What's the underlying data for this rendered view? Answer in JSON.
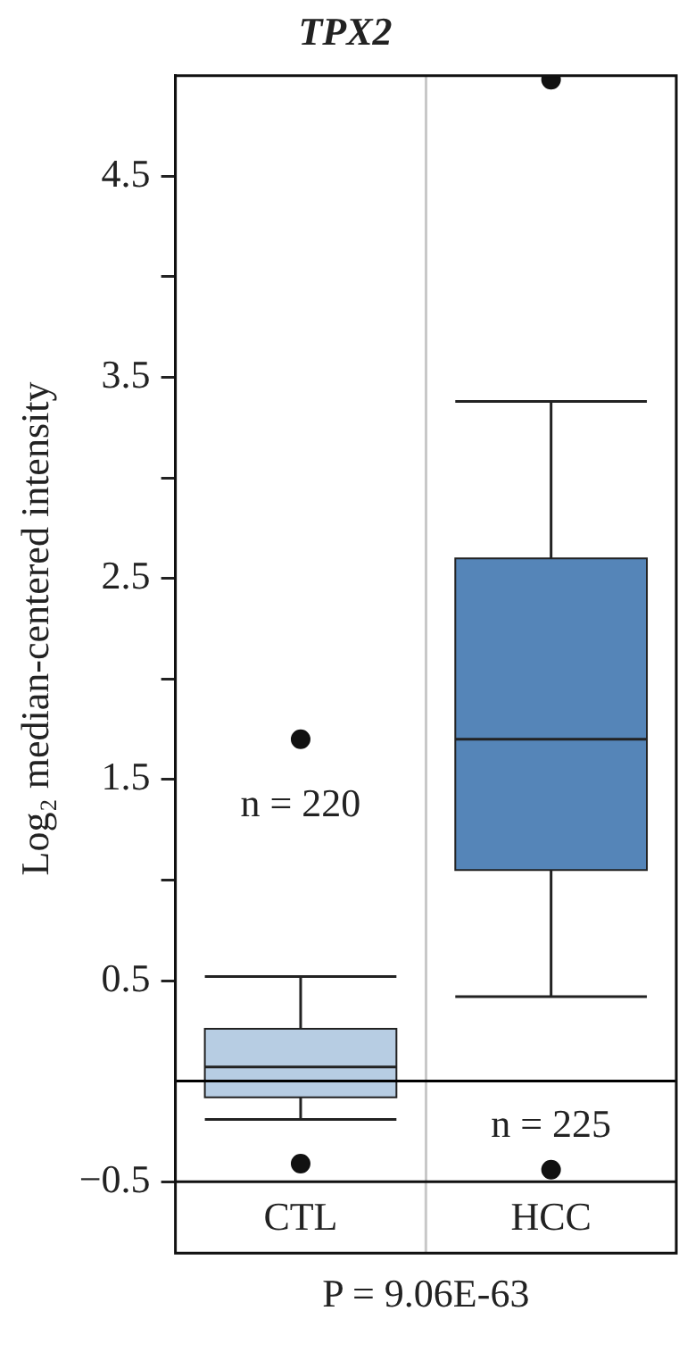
{
  "chart_data": {
    "type": "box",
    "title": "TPX2",
    "ylabel": "Log₂ median-centered intensity",
    "categories": [
      "CTL",
      "HCC"
    ],
    "colors": [
      "#b7cde3",
      "#5585b8"
    ],
    "boxes": [
      {
        "low": -0.19,
        "q1": -0.08,
        "median": 0.07,
        "q3": 0.26,
        "high": 0.52,
        "outliers": [
          1.7,
          -0.41
        ]
      },
      {
        "low": 0.42,
        "q1": 1.05,
        "median": 1.7,
        "q3": 2.6,
        "high": 3.38,
        "outliers": [
          4.98,
          -0.44
        ]
      }
    ],
    "ylim": [
      -0.5,
      5.0
    ],
    "yticks": [
      {
        "value": -0.5,
        "label": "−0.5"
      },
      0.5,
      {
        "value": 1,
        "label": null
      },
      1.5,
      {
        "value": 2,
        "label": null
      },
      2.5,
      {
        "value": 3,
        "label": null
      },
      3.5,
      {
        "value": 4,
        "label": null
      },
      4.5
    ],
    "grid": "x",
    "ref_lines": [
      {
        "axis": "y",
        "value": 0,
        "color": "#000000"
      }
    ],
    "annotations": [
      "n = 220",
      "n = 225",
      "P = 9.06E-63"
    ]
  }
}
